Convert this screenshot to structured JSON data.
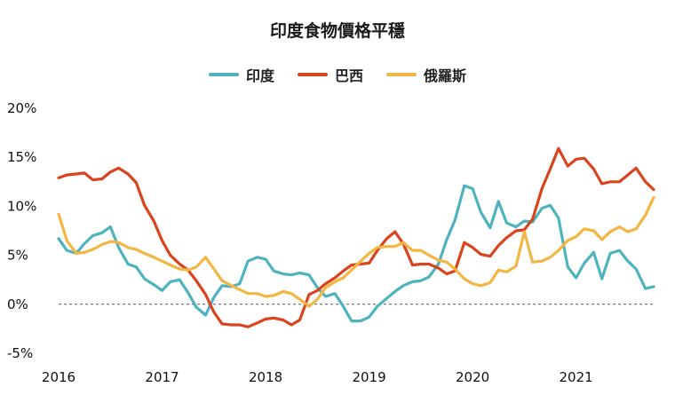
{
  "chart_data": {
    "type": "line",
    "title": "印度食物價格平穩",
    "xlabel": "",
    "ylabel": "",
    "x_ticks": [
      "2016",
      "2017",
      "2018",
      "2019",
      "2020",
      "2021"
    ],
    "y_ticks": [
      "20%",
      "15%",
      "10%",
      "5%",
      "0%",
      "-5%"
    ],
    "ylim": [
      -5,
      20
    ],
    "xlim": [
      2016.0,
      2021.75
    ],
    "grid": false,
    "legend_position": "top-center",
    "series": [
      {
        "name": "印度",
        "color": "#4fb3bf",
        "points": [
          [
            2016.0,
            6.7
          ],
          [
            2016.08,
            5.5
          ],
          [
            2016.17,
            5.2
          ],
          [
            2016.25,
            6.2
          ],
          [
            2016.33,
            7.0
          ],
          [
            2016.42,
            7.3
          ],
          [
            2016.5,
            7.9
          ],
          [
            2016.58,
            5.8
          ],
          [
            2016.67,
            4.1
          ],
          [
            2016.75,
            3.8
          ],
          [
            2016.83,
            2.6
          ],
          [
            2016.92,
            2.0
          ],
          [
            2017.0,
            1.4
          ],
          [
            2017.08,
            2.3
          ],
          [
            2017.17,
            2.5
          ],
          [
            2017.25,
            1.2
          ],
          [
            2017.33,
            -0.3
          ],
          [
            2017.42,
            -1.1
          ],
          [
            2017.5,
            0.7
          ],
          [
            2017.58,
            1.9
          ],
          [
            2017.67,
            1.8
          ],
          [
            2017.75,
            2.1
          ],
          [
            2017.83,
            4.4
          ],
          [
            2017.92,
            4.8
          ],
          [
            2018.0,
            4.6
          ],
          [
            2018.08,
            3.4
          ],
          [
            2018.17,
            3.1
          ],
          [
            2018.25,
            3.0
          ],
          [
            2018.33,
            3.2
          ],
          [
            2018.42,
            3.0
          ],
          [
            2018.5,
            1.7
          ],
          [
            2018.58,
            0.8
          ],
          [
            2018.67,
            1.1
          ],
          [
            2018.75,
            -0.2
          ],
          [
            2018.83,
            -1.7
          ],
          [
            2018.92,
            -1.7
          ],
          [
            2019.0,
            -1.3
          ],
          [
            2019.08,
            -0.2
          ],
          [
            2019.17,
            0.6
          ],
          [
            2019.25,
            1.3
          ],
          [
            2019.33,
            1.9
          ],
          [
            2019.42,
            2.3
          ],
          [
            2019.5,
            2.4
          ],
          [
            2019.58,
            2.8
          ],
          [
            2019.67,
            4.1
          ],
          [
            2019.75,
            6.6
          ],
          [
            2019.83,
            8.6
          ],
          [
            2019.92,
            12.1
          ],
          [
            2020.0,
            11.8
          ],
          [
            2020.08,
            9.4
          ],
          [
            2020.17,
            7.8
          ],
          [
            2020.25,
            10.5
          ],
          [
            2020.33,
            8.3
          ],
          [
            2020.42,
            7.9
          ],
          [
            2020.5,
            8.5
          ],
          [
            2020.58,
            8.4
          ],
          [
            2020.67,
            9.8
          ],
          [
            2020.75,
            10.1
          ],
          [
            2020.83,
            8.8
          ],
          [
            2020.92,
            3.8
          ],
          [
            2021.0,
            2.7
          ],
          [
            2021.08,
            4.2
          ],
          [
            2021.17,
            5.3
          ],
          [
            2021.25,
            2.6
          ],
          [
            2021.33,
            5.2
          ],
          [
            2021.42,
            5.5
          ],
          [
            2021.5,
            4.4
          ],
          [
            2021.58,
            3.6
          ],
          [
            2021.67,
            1.6
          ],
          [
            2021.75,
            1.8
          ]
        ]
      },
      {
        "name": "巴西",
        "color": "#d9441e",
        "points": [
          [
            2016.0,
            12.9
          ],
          [
            2016.08,
            13.2
          ],
          [
            2016.17,
            13.3
          ],
          [
            2016.25,
            13.4
          ],
          [
            2016.33,
            12.7
          ],
          [
            2016.42,
            12.8
          ],
          [
            2016.5,
            13.5
          ],
          [
            2016.58,
            13.9
          ],
          [
            2016.67,
            13.3
          ],
          [
            2016.75,
            12.4
          ],
          [
            2016.83,
            10.1
          ],
          [
            2016.92,
            8.5
          ],
          [
            2017.0,
            6.5
          ],
          [
            2017.08,
            5.0
          ],
          [
            2017.17,
            4.1
          ],
          [
            2017.25,
            3.5
          ],
          [
            2017.33,
            2.4
          ],
          [
            2017.42,
            1.0
          ],
          [
            2017.5,
            -0.8
          ],
          [
            2017.58,
            -2.0
          ],
          [
            2017.67,
            -2.1
          ],
          [
            2017.75,
            -2.1
          ],
          [
            2017.83,
            -2.3
          ],
          [
            2017.92,
            -1.9
          ],
          [
            2018.0,
            -1.5
          ],
          [
            2018.08,
            -1.4
          ],
          [
            2018.17,
            -1.6
          ],
          [
            2018.25,
            -2.1
          ],
          [
            2018.33,
            -1.6
          ],
          [
            2018.42,
            1.0
          ],
          [
            2018.5,
            1.4
          ],
          [
            2018.58,
            2.1
          ],
          [
            2018.67,
            2.7
          ],
          [
            2018.75,
            3.4
          ],
          [
            2018.83,
            4.0
          ],
          [
            2018.92,
            4.1
          ],
          [
            2019.0,
            4.2
          ],
          [
            2019.08,
            5.5
          ],
          [
            2019.17,
            6.7
          ],
          [
            2019.25,
            7.4
          ],
          [
            2019.33,
            6.2
          ],
          [
            2019.42,
            4.0
          ],
          [
            2019.5,
            4.1
          ],
          [
            2019.58,
            4.1
          ],
          [
            2019.67,
            3.7
          ],
          [
            2019.75,
            3.1
          ],
          [
            2019.83,
            3.4
          ],
          [
            2019.92,
            6.3
          ],
          [
            2020.0,
            5.8
          ],
          [
            2020.08,
            5.1
          ],
          [
            2020.17,
            4.9
          ],
          [
            2020.25,
            6.0
          ],
          [
            2020.33,
            6.8
          ],
          [
            2020.42,
            7.5
          ],
          [
            2020.5,
            7.6
          ],
          [
            2020.58,
            8.7
          ],
          [
            2020.67,
            11.8
          ],
          [
            2020.75,
            13.8
          ],
          [
            2020.83,
            15.9
          ],
          [
            2020.92,
            14.1
          ],
          [
            2021.0,
            14.8
          ],
          [
            2021.08,
            14.9
          ],
          [
            2021.17,
            13.8
          ],
          [
            2021.25,
            12.3
          ],
          [
            2021.33,
            12.5
          ],
          [
            2021.42,
            12.5
          ],
          [
            2021.5,
            13.2
          ],
          [
            2021.58,
            13.9
          ],
          [
            2021.67,
            12.5
          ],
          [
            2021.75,
            11.7
          ]
        ]
      },
      {
        "name": "俄羅斯",
        "color": "#f4b642",
        "points": [
          [
            2016.0,
            9.2
          ],
          [
            2016.08,
            6.5
          ],
          [
            2016.17,
            5.2
          ],
          [
            2016.25,
            5.3
          ],
          [
            2016.33,
            5.6
          ],
          [
            2016.42,
            6.1
          ],
          [
            2016.5,
            6.4
          ],
          [
            2016.58,
            6.3
          ],
          [
            2016.67,
            5.8
          ],
          [
            2016.75,
            5.6
          ],
          [
            2016.83,
            5.2
          ],
          [
            2016.92,
            4.8
          ],
          [
            2017.0,
            4.4
          ],
          [
            2017.08,
            4.0
          ],
          [
            2017.17,
            3.6
          ],
          [
            2017.25,
            3.5
          ],
          [
            2017.33,
            3.8
          ],
          [
            2017.42,
            4.8
          ],
          [
            2017.5,
            3.6
          ],
          [
            2017.58,
            2.4
          ],
          [
            2017.67,
            1.9
          ],
          [
            2017.75,
            1.5
          ],
          [
            2017.83,
            1.1
          ],
          [
            2017.92,
            1.1
          ],
          [
            2018.0,
            0.8
          ],
          [
            2018.08,
            0.9
          ],
          [
            2018.17,
            1.3
          ],
          [
            2018.25,
            1.1
          ],
          [
            2018.33,
            0.5
          ],
          [
            2018.42,
            -0.2
          ],
          [
            2018.5,
            0.5
          ],
          [
            2018.58,
            1.7
          ],
          [
            2018.67,
            2.3
          ],
          [
            2018.75,
            2.7
          ],
          [
            2018.83,
            3.5
          ],
          [
            2018.92,
            4.4
          ],
          [
            2019.0,
            5.2
          ],
          [
            2019.08,
            5.8
          ],
          [
            2019.17,
            5.9
          ],
          [
            2019.25,
            5.9
          ],
          [
            2019.33,
            6.3
          ],
          [
            2019.42,
            5.5
          ],
          [
            2019.5,
            5.5
          ],
          [
            2019.58,
            5.0
          ],
          [
            2019.67,
            4.5
          ],
          [
            2019.75,
            4.3
          ],
          [
            2019.83,
            3.6
          ],
          [
            2019.92,
            2.6
          ],
          [
            2020.0,
            2.1
          ],
          [
            2020.08,
            1.9
          ],
          [
            2020.17,
            2.2
          ],
          [
            2020.25,
            3.5
          ],
          [
            2020.33,
            3.3
          ],
          [
            2020.42,
            3.9
          ],
          [
            2020.5,
            7.4
          ],
          [
            2020.58,
            4.3
          ],
          [
            2020.67,
            4.4
          ],
          [
            2020.75,
            4.8
          ],
          [
            2020.83,
            5.5
          ],
          [
            2020.92,
            6.5
          ],
          [
            2021.0,
            6.9
          ],
          [
            2021.08,
            7.7
          ],
          [
            2021.17,
            7.5
          ],
          [
            2021.25,
            6.6
          ],
          [
            2021.33,
            7.4
          ],
          [
            2021.42,
            7.9
          ],
          [
            2021.5,
            7.4
          ],
          [
            2021.58,
            7.7
          ],
          [
            2021.67,
            9.1
          ],
          [
            2021.75,
            10.9
          ]
        ]
      }
    ]
  }
}
